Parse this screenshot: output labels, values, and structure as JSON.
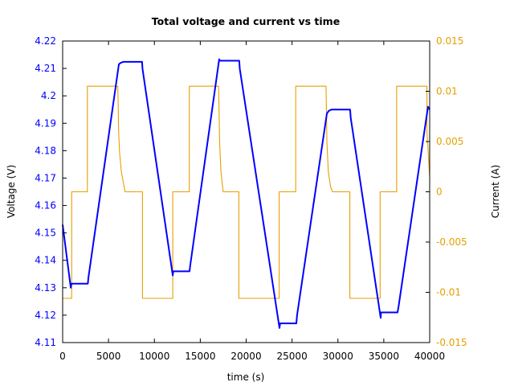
{
  "chart_data": {
    "type": "line",
    "title": "Total voltage and current vs time",
    "xlabel": "time (s)",
    "ylabel": "Voltage (V)",
    "y2label": "Current (A)",
    "xlim": [
      0,
      40000
    ],
    "ylim": [
      4.11,
      4.22
    ],
    "y2lim": [
      -0.015,
      0.015
    ],
    "grid": false,
    "legend": null,
    "x_ticks": [
      "0",
      "5000",
      "10000",
      "15000",
      "20000",
      "25000",
      "30000",
      "35000",
      "40000"
    ],
    "y_ticks": [
      "4.11",
      "4.12",
      "4.13",
      "4.14",
      "4.15",
      "4.16",
      "4.17",
      "4.18",
      "4.19",
      "4.2",
      "4.21",
      "4.22"
    ],
    "y2_ticks": [
      "-0.015",
      "-0.01",
      "-0.005",
      "0",
      "0.005",
      "0.01",
      "0.015"
    ],
    "colors": {
      "voltage": "#0000ff",
      "current": "#e69f00",
      "axes": "#000000"
    },
    "series": [
      {
        "name": "Voltage",
        "axis": "left",
        "x": [
          0,
          880,
          950,
          2750,
          2800,
          6130,
          6300,
          6600,
          6800,
          8660,
          8700,
          12000,
          12050,
          13830,
          13900,
          17060,
          17150,
          19250,
          19300,
          23630,
          23700,
          25470,
          25550,
          28800,
          29000,
          29300,
          29600,
          31330,
          31400,
          34660,
          34700,
          36500,
          36600,
          39820,
          40000
        ],
        "values": [
          4.153,
          4.13,
          4.1315,
          4.1315,
          4.1335,
          4.2115,
          4.212,
          4.2124,
          4.2124,
          4.2124,
          4.21,
          4.1345,
          4.136,
          4.136,
          4.138,
          4.2133,
          4.2128,
          4.2128,
          4.21,
          4.1153,
          4.117,
          4.117,
          4.12,
          4.1935,
          4.1945,
          4.195,
          4.195,
          4.195,
          4.192,
          4.119,
          4.121,
          4.121,
          4.123,
          4.196,
          4.195
        ]
      },
      {
        "name": "Current",
        "axis": "right",
        "x": [
          0,
          980,
          980,
          2700,
          2700,
          6000,
          6050,
          6100,
          6200,
          6400,
          6700,
          6800,
          8700,
          8700,
          12000,
          12000,
          13800,
          13800,
          17000,
          17050,
          17100,
          17250,
          17500,
          19200,
          19200,
          23600,
          23600,
          25400,
          25400,
          28700,
          28750,
          28800,
          28950,
          29200,
          29400,
          31300,
          31300,
          34600,
          34600,
          36400,
          36400,
          39700,
          39700,
          40000
        ],
        "values": [
          -0.0106,
          -0.0106,
          0,
          0,
          0.0105,
          0.0105,
          0.009,
          0.006,
          0.004,
          0.002,
          0.0005,
          0,
          0,
          -0.0106,
          -0.0106,
          0,
          0,
          0.0105,
          0.0105,
          0.008,
          0.005,
          0.002,
          0,
          0,
          -0.0106,
          -0.0106,
          0,
          0,
          0.0105,
          0.0105,
          0.008,
          0.005,
          0.002,
          0.0005,
          0,
          0,
          -0.0106,
          -0.0106,
          0,
          0,
          0.0105,
          0.0105,
          0.006,
          0.0015
        ]
      }
    ]
  }
}
